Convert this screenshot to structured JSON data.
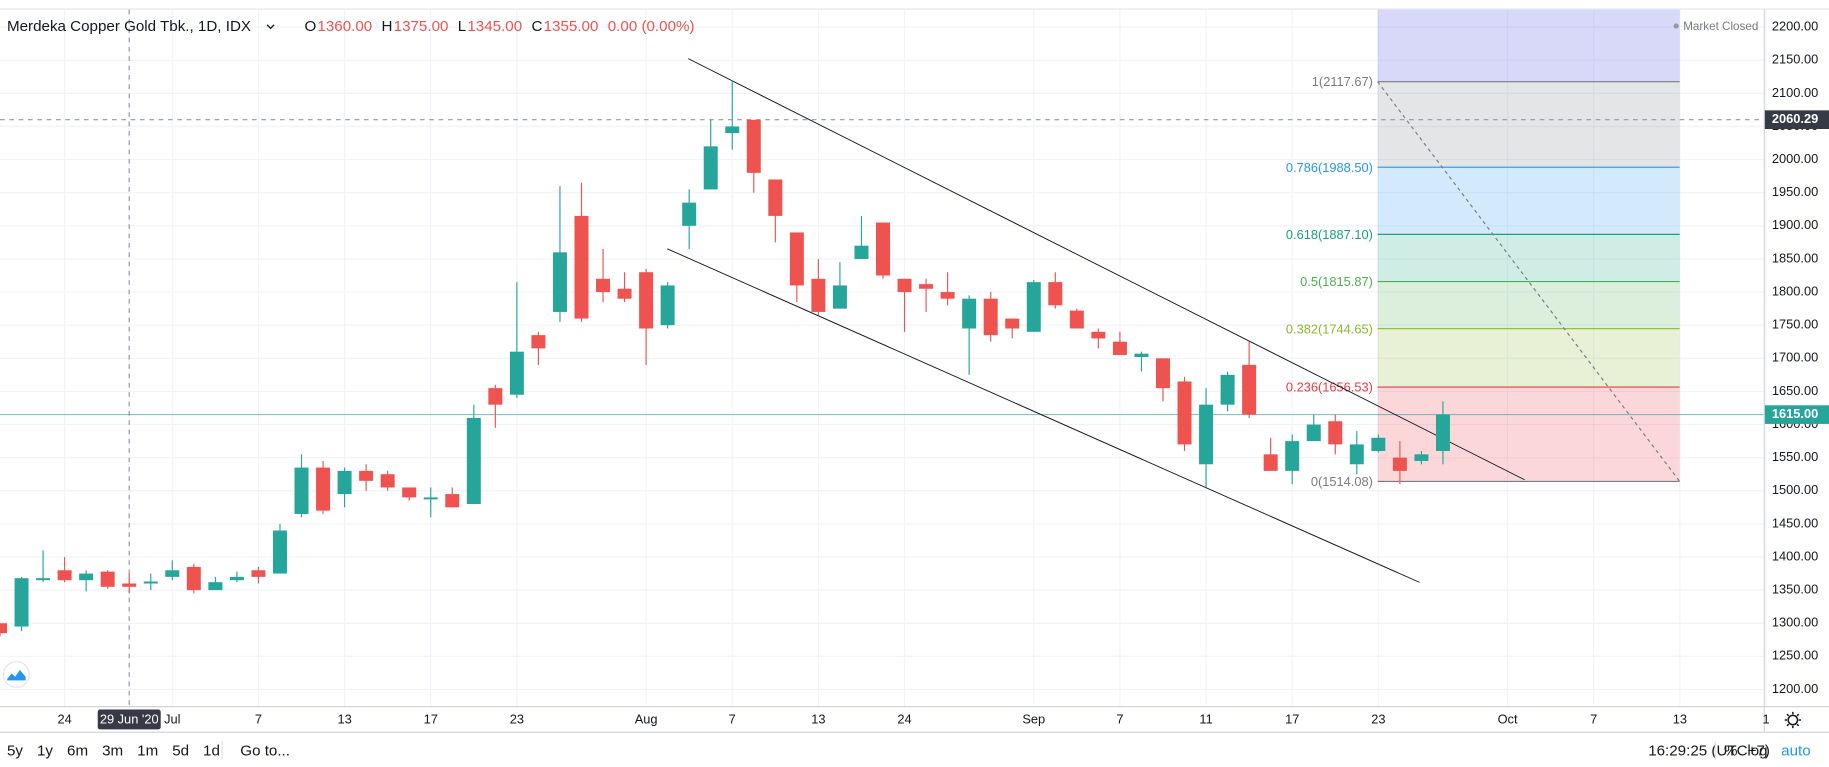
{
  "header": {
    "symbol": "Merdeka Copper Gold Tbk., 1D, IDX",
    "ohlc": [
      {
        "key": "O",
        "value": "1360.00"
      },
      {
        "key": "H",
        "value": "1375.00"
      },
      {
        "key": "L",
        "value": "1345.00"
      },
      {
        "key": "C",
        "value": "1355.00"
      }
    ],
    "change": "0.00 (0.00%)",
    "status": "Market Closed"
  },
  "toolbar": {
    "ranges": [
      "5y",
      "1y",
      "6m",
      "3m",
      "1m",
      "5d",
      "1d"
    ],
    "goto": "Go to...",
    "time": "16:29:25 (UTC+7)",
    "percent": "%",
    "log": "log",
    "auto": "auto"
  },
  "chart_data": {
    "type": "candlestick",
    "up_color": "#26a69a",
    "down_color": "#ef5350",
    "categories": [
      null,
      null,
      null,
      "24",
      null,
      null,
      "29 Jun '20",
      null,
      "Jul",
      null,
      null,
      null,
      "7",
      null,
      null,
      null,
      "13",
      null,
      null,
      null,
      "17",
      null,
      null,
      null,
      "23",
      null,
      null,
      null,
      null,
      null,
      "Aug",
      null,
      null,
      null,
      "7",
      null,
      null,
      null,
      "13",
      null,
      null,
      null,
      "24",
      null,
      null,
      null,
      null,
      null,
      "Sep",
      null,
      null,
      null,
      "7",
      null,
      null,
      null,
      "11",
      null,
      null,
      null,
      "17",
      null,
      null,
      null,
      "23",
      null,
      null,
      null,
      null,
      null,
      "Oct",
      null,
      null,
      null,
      "7",
      null,
      null,
      null,
      "13",
      null,
      null,
      null,
      "1"
    ],
    "open": [
      1300,
      1295,
      1365,
      1380,
      1365,
      1378,
      1360,
      1360,
      1370,
      1385,
      1350,
      1365,
      1380,
      1375,
      1465,
      1535,
      1495,
      1530,
      1525,
      1505,
      1487,
      1495,
      1480,
      1655,
      1645,
      1735,
      1770,
      1915,
      1820,
      1805,
      1830,
      1750,
      1900,
      1955,
      2040,
      2060,
      1970,
      1890,
      1820,
      1775,
      1850,
      1905,
      1820,
      1812,
      1800,
      1745,
      1790,
      1760,
      1740,
      1815,
      1772,
      1740,
      1725,
      1702,
      1700,
      1665,
      1540,
      1630,
      1690,
      1555,
      1530,
      1575,
      1605,
      1540,
      1560,
      1550,
      1545,
      1560,
      null,
      null,
      null,
      null,
      null,
      null,
      null,
      null,
      null,
      null,
      null,
      null,
      null,
      null,
      null
    ],
    "high": [
      1300,
      1370,
      1410,
      1400,
      1380,
      1380,
      1375,
      1375,
      1395,
      1390,
      1370,
      1378,
      1385,
      1450,
      1555,
      1545,
      1535,
      1540,
      1530,
      1505,
      1505,
      1505,
      1630,
      1660,
      1815,
      1740,
      1960,
      1965,
      1865,
      1830,
      1835,
      1815,
      1955,
      2060,
      2120,
      2060,
      1970,
      1890,
      1850,
      1845,
      1915,
      1905,
      1820,
      1820,
      1830,
      1795,
      1800,
      1760,
      1818,
      1830,
      1775,
      1745,
      1740,
      1710,
      1700,
      1672,
      1655,
      1680,
      1725,
      1580,
      1585,
      1615,
      1615,
      1590,
      1585,
      1575,
      1560,
      1635,
      null,
      null,
      null,
      null,
      null,
      null,
      null,
      null,
      null,
      null,
      null,
      null,
      null,
      null,
      null
    ],
    "low": [
      1280,
      1288,
      1362,
      1362,
      1348,
      1352,
      1345,
      1350,
      1365,
      1345,
      1350,
      1362,
      1360,
      1375,
      1460,
      1465,
      1475,
      1500,
      1500,
      1485,
      1460,
      1475,
      1480,
      1595,
      1640,
      1690,
      1755,
      1755,
      1785,
      1785,
      1690,
      1745,
      1865,
      1955,
      2015,
      1950,
      1875,
      1785,
      1765,
      1775,
      1850,
      1820,
      1740,
      1770,
      1780,
      1675,
      1725,
      1730,
      1740,
      1775,
      1745,
      1715,
      1705,
      1680,
      1635,
      1560,
      1505,
      1620,
      1610,
      1530,
      1510,
      1575,
      1555,
      1525,
      1558,
      1510,
      1540,
      1540,
      null,
      null,
      null,
      null,
      null,
      null,
      null,
      null,
      null,
      null,
      null,
      null,
      null,
      null,
      null
    ],
    "close": [
      1285,
      1368,
      1368,
      1365,
      1375,
      1355,
      1355,
      1363,
      1380,
      1350,
      1362,
      1370,
      1370,
      1440,
      1535,
      1470,
      1530,
      1515,
      1505,
      1490,
      1490,
      1475,
      1610,
      1630,
      1710,
      1715,
      1860,
      1760,
      1800,
      1790,
      1745,
      1810,
      1935,
      2020,
      2050,
      1980,
      1915,
      1810,
      1770,
      1810,
      1870,
      1825,
      1800,
      1805,
      1790,
      1790,
      1735,
      1745,
      1815,
      1780,
      1745,
      1730,
      1705,
      1707,
      1655,
      1570,
      1630,
      1675,
      1615,
      1530,
      1575,
      1600,
      1570,
      1570,
      1580,
      1530,
      1555,
      1615,
      null,
      null,
      null,
      null,
      null,
      null,
      null,
      null,
      null,
      null,
      null,
      null,
      null,
      null,
      null
    ],
    "ylim": [
      1175,
      2226.4
    ],
    "yticks": [
      {
        "value": 1200,
        "label": "1200.00"
      },
      {
        "value": 1250,
        "label": "1250.00"
      },
      {
        "value": 1300,
        "label": "1300.00"
      },
      {
        "value": 1350,
        "label": "1350.00"
      },
      {
        "value": 1400,
        "label": "1400.00"
      },
      {
        "value": 1450,
        "label": "1450.00"
      },
      {
        "value": 1500,
        "label": "1500.00"
      },
      {
        "value": 1550,
        "label": "1550.00"
      },
      {
        "value": 1600,
        "label": "1600.00"
      },
      {
        "value": 1650,
        "label": "1650.00"
      },
      {
        "value": 1700,
        "label": "1700.00"
      },
      {
        "value": 1750,
        "label": "1750.00"
      },
      {
        "value": 1800,
        "label": "1800.00"
      },
      {
        "value": 1850,
        "label": "1850.00"
      },
      {
        "value": 1900,
        "label": "1900.00"
      },
      {
        "value": 1950,
        "label": "1950.00"
      },
      {
        "value": 2000,
        "label": "2000.00"
      },
      {
        "value": 2050,
        "label": "2050.00"
      },
      {
        "value": 2100,
        "label": "2100.00"
      },
      {
        "value": 2150,
        "label": "2150.00"
      },
      {
        "value": 2200,
        "label": "2200.00"
      }
    ],
    "grid": true,
    "crosshair_at": "29 Jun '20",
    "crosshair_price": {
      "value": 2060.29,
      "label": "2060.29"
    },
    "last_price": {
      "value": 1615,
      "label": "1615.00"
    },
    "fib": {
      "top_band_color": "#7e80e8",
      "levels": [
        {
          "value": 2117.67,
          "label": "1(2117.67)",
          "color": "#787b86"
        },
        {
          "value": 1988.5,
          "label": "0.786(1988.50)",
          "color": "#2196f3"
        },
        {
          "value": 1887.1,
          "label": "0.618(1887.10)",
          "color": "#14a37f"
        },
        {
          "value": 1815.87,
          "label": "0.5(1815.87)",
          "color": "#4caf50"
        },
        {
          "value": 1744.65,
          "label": "0.382(1744.65)",
          "color": "#8bb82e"
        },
        {
          "value": 1656.53,
          "label": "0.236(1656.53)",
          "color": "#f23645"
        },
        {
          "value": 1514.08,
          "label": "0(1514.08)",
          "color": "#787b86"
        }
      ]
    }
  }
}
